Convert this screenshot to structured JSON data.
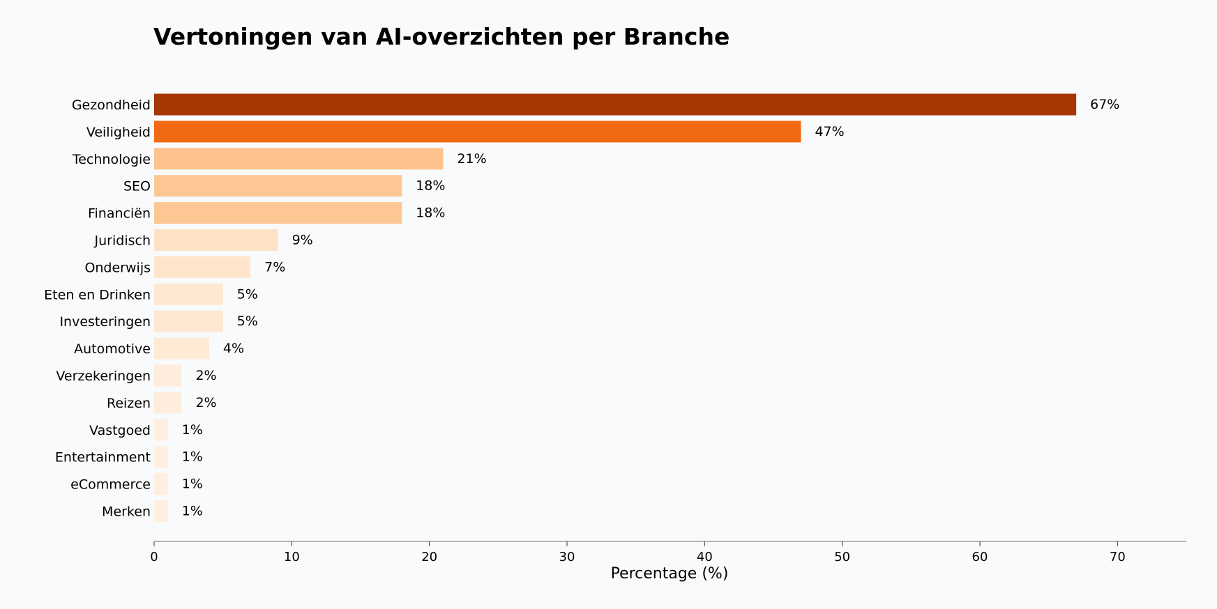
{
  "chart_data": {
    "type": "bar",
    "orientation": "horizontal",
    "title": "Vertoningen van AI-overzichten per Branche",
    "xlabel": "Percentage (%)",
    "ylabel": "",
    "xlim": [
      0,
      75
    ],
    "xticks": [
      0,
      10,
      20,
      30,
      40,
      50,
      60,
      70
    ],
    "grid": false,
    "value_suffix": "%",
    "categories": [
      "Gezondheid",
      "Veiligheid",
      "Technologie",
      "SEO",
      "Financiën",
      "Juridisch",
      "Onderwijs",
      "Eten en Drinken",
      "Investeringen",
      "Automotive",
      "Verzekeringen",
      "Reizen",
      "Vastgoed",
      "Entertainment",
      "eCommerce",
      "Merken"
    ],
    "values": [
      67,
      47,
      21,
      18,
      18,
      9,
      7,
      5,
      5,
      4,
      2,
      2,
      1,
      1,
      1,
      1
    ],
    "colors": [
      "#a63603",
      "#f16913",
      "#fdc38e",
      "#fdc793",
      "#fdc793",
      "#fee2c5",
      "#fee5cc",
      "#fee8d2",
      "#fee8d2",
      "#feead5",
      "#feeddc",
      "#feeddc",
      "#feefe0",
      "#feefe0",
      "#feefe0",
      "#feefe0"
    ]
  }
}
